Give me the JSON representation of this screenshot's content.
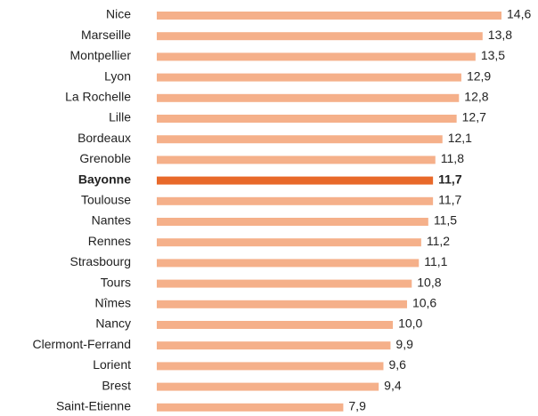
{
  "chart_data": {
    "type": "bar",
    "orientation": "horizontal",
    "categories": [
      "Nice",
      "Marseille",
      "Montpellier",
      "Lyon",
      "La Rochelle",
      "Lille",
      "Bordeaux",
      "Grenoble",
      "Bayonne",
      "Toulouse",
      "Nantes",
      "Rennes",
      "Strasbourg",
      "Tours",
      "Nîmes",
      "Nancy",
      "Clermont-Ferrand",
      "Lorient",
      "Brest",
      "Saint-Etienne"
    ],
    "values": [
      14.6,
      13.8,
      13.5,
      12.9,
      12.8,
      12.7,
      12.1,
      11.8,
      11.7,
      11.7,
      11.5,
      11.2,
      11.1,
      10.8,
      10.6,
      10.0,
      9.9,
      9.6,
      9.4,
      7.9
    ],
    "value_labels": [
      "14,6",
      "13,8",
      "13,5",
      "12,9",
      "12,8",
      "12,7",
      "12,1",
      "11,8",
      "11,7",
      "11,7",
      "11,5",
      "11,2",
      "11,1",
      "10,8",
      "10,6",
      "10,0",
      "9,9",
      "9,6",
      "9,4",
      "7,9"
    ],
    "color": "#f5b08a",
    "highlight": "Bayonne",
    "highlight_color": "#e8692a"
  }
}
